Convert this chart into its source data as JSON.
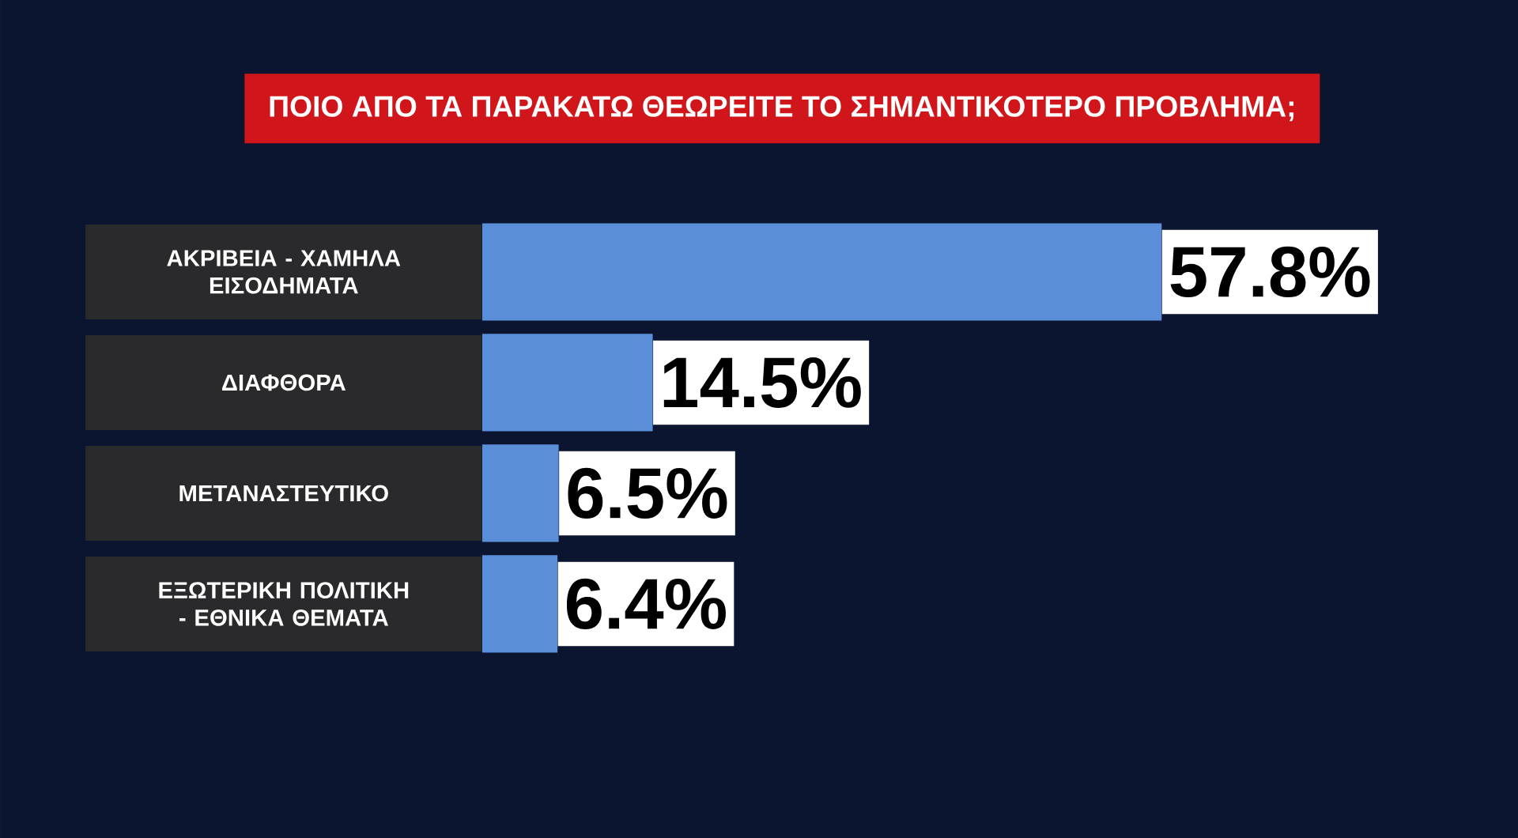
{
  "chart_data": {
    "type": "bar",
    "orientation": "horizontal",
    "title": "ΠΟΙΟ ΑΠΟ ΤΑ ΠΑΡΑΚΑΤΩ ΘΕΩΡΕΙΤΕ ΤΟ ΣΗΜΑΝΤΙΚΟΤΕΡΟ ΠΡΟΒΛΗΜΑ;",
    "categories": [
      "ΑΚΡΙΒΕΙΑ - ΧΑΜΗΛΑ ΕΙΣΟΔΗΜΑΤΑ",
      "ΔΙΑΦΘΟΡΑ",
      "ΜΕΤΑΝΑΣΤΕΥΤΙΚΟ",
      "ΕΞΩΤΕΡΙΚΗ ΠΟΛΙΤΙΚΗ - ΕΘΝΙΚΑ ΘΕΜΑΤΑ"
    ],
    "values": [
      57.8,
      14.5,
      6.5,
      6.4
    ],
    "value_labels": [
      "57.8%",
      "14.5%",
      "6.5%",
      "6.4%"
    ],
    "color": "#5b8ed8"
  }
}
